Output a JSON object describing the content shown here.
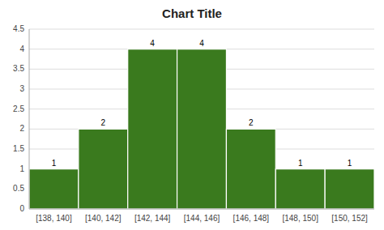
{
  "chart_data": {
    "type": "bar",
    "title": "Chart Title",
    "categories": [
      "[138, 140]",
      "[140, 142]",
      "[142, 144]",
      "[144, 146]",
      "[146, 148]",
      "[148, 150]",
      "[150, 152]"
    ],
    "values": [
      1,
      2,
      4,
      4,
      2,
      1,
      1
    ],
    "color": "#3a7a1e",
    "ylim": [
      0,
      4.5
    ],
    "yticks": [
      0,
      0.5,
      1,
      1.5,
      2,
      2.5,
      3,
      3.5,
      4,
      4.5
    ],
    "grid": true,
    "data_labels": true
  }
}
